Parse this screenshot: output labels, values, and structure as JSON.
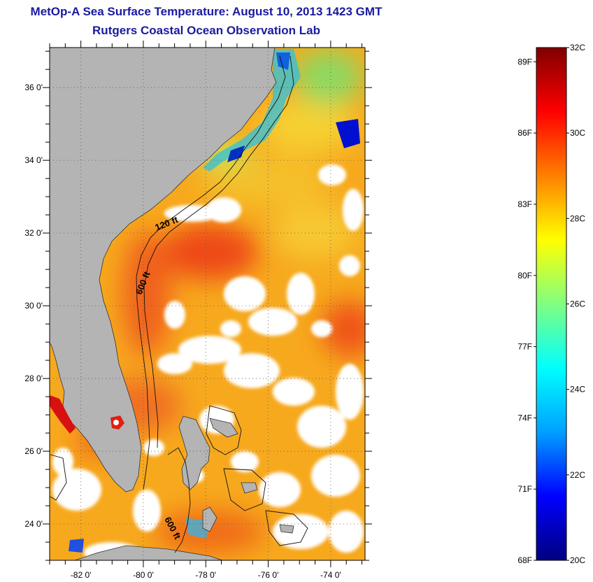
{
  "header": {
    "title": "MetOp-A Sea Surface Temperature:  August 10, 2013 1423 GMT",
    "subtitle": "Rutgers Coastal Ocean Observation Lab"
  },
  "map": {
    "lon_range": [
      -83.0,
      -72.9
    ],
    "lat_range": [
      23.0,
      37.1
    ],
    "lat_ticks": [
      {
        "value": 36,
        "label": "36 0'"
      },
      {
        "value": 34,
        "label": "34 0'"
      },
      {
        "value": 32,
        "label": "32 0'"
      },
      {
        "value": 30,
        "label": "30 0'"
      },
      {
        "value": 28,
        "label": "28 0'"
      },
      {
        "value": 26,
        "label": "26 0'"
      },
      {
        "value": 24,
        "label": "24 0'"
      }
    ],
    "lon_ticks": [
      {
        "value": -82,
        "label": "-82 0'"
      },
      {
        "value": -80,
        "label": "-80 0'"
      },
      {
        "value": -78,
        "label": "-78 0'"
      },
      {
        "value": -76,
        "label": "-76 0'"
      },
      {
        "value": -74,
        "label": "-74 0'"
      }
    ],
    "contour_labels": [
      "120 ft",
      "600 ft",
      "600 ft"
    ],
    "land_color": "#b4b4b4",
    "cloud_color": "#ffffff"
  },
  "colorbar": {
    "range_c": [
      20,
      32
    ],
    "celsius_labels": [
      {
        "value": 32,
        "label": "32C"
      },
      {
        "value": 30,
        "label": "30C"
      },
      {
        "value": 28,
        "label": "28C"
      },
      {
        "value": 26,
        "label": "26C"
      },
      {
        "value": 24,
        "label": "24C"
      },
      {
        "value": 22,
        "label": "22C"
      },
      {
        "value": 20,
        "label": "20C"
      }
    ],
    "fahrenheit_labels": [
      {
        "value": 89,
        "label": "89F"
      },
      {
        "value": 86,
        "label": "86F"
      },
      {
        "value": 83,
        "label": "83F"
      },
      {
        "value": 80,
        "label": "80F"
      },
      {
        "value": 77,
        "label": "77F"
      },
      {
        "value": 74,
        "label": "74F"
      },
      {
        "value": 71,
        "label": "71F"
      },
      {
        "value": 68,
        "label": "68F"
      }
    ],
    "colormap": [
      "#000080",
      "#0000ff",
      "#00a0ff",
      "#00ffff",
      "#80ff80",
      "#ffff00",
      "#ff8000",
      "#ff0000",
      "#800000"
    ]
  }
}
